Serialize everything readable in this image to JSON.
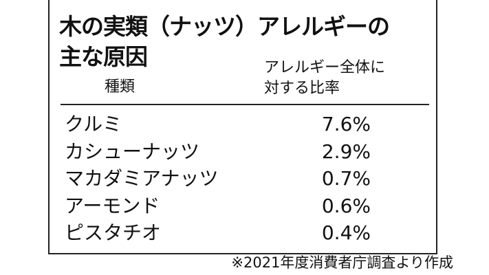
{
  "title": [
    "木の実類（ナッツ）アレルギーの",
    "主な原因"
  ],
  "table": {
    "header": [
      "種類",
      [
        "アレルギー全体に",
        "対する比率"
      ]
    ],
    "rows": [
      [
        "クルミ",
        "7.6%"
      ],
      [
        "カシューナッツ",
        "2.9%"
      ],
      [
        "マカダミアナッツ",
        "0.7%"
      ],
      [
        "アーモンド",
        "0.6%"
      ],
      [
        "ピスタチオ",
        "0.4%"
      ]
    ]
  },
  "footnote": "※2021年度消費者庁調査より作成"
}
